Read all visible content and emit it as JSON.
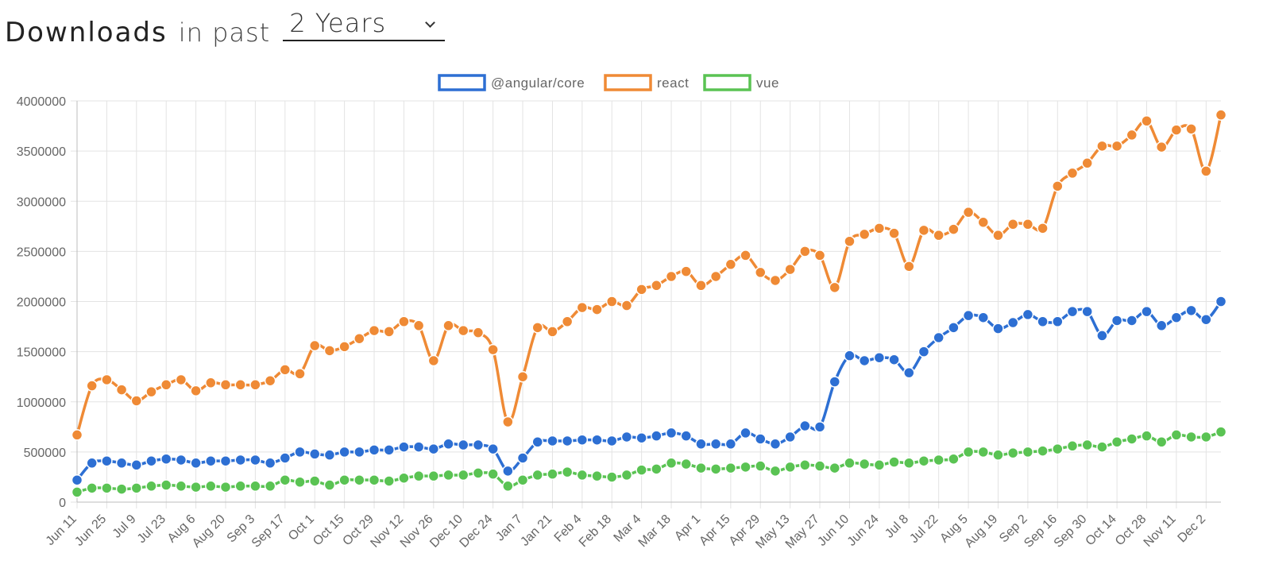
{
  "header": {
    "title": "Downloads",
    "subtitle": "in past",
    "period_select": {
      "value": "2 Years"
    }
  },
  "chart_data": {
    "type": "line",
    "ylim": [
      0,
      4000000
    ],
    "y_ticks": [
      "4000000",
      "3500000",
      "3000000",
      "2500000",
      "2000000",
      "1500000",
      "1000000",
      "500000",
      "0"
    ],
    "x_tick_labels": [
      "Jun 11",
      "Jun 25",
      "Jul 9",
      "Jul 23",
      "Aug 6",
      "Aug 20",
      "Sep 3",
      "Sep 17",
      "Oct 1",
      "Oct 15",
      "Oct 29",
      "Nov 12",
      "Nov 26",
      "Dec 10",
      "Dec 24",
      "Jan 7",
      "Jan 21",
      "Feb 4",
      "Feb 18",
      "Mar 4",
      "Mar 18",
      "Apr 1",
      "Apr 15",
      "Apr 29",
      "May 13",
      "May 27",
      "Jun 10",
      "Jun 24",
      "Jul 8",
      "Jul 22",
      "Aug 5",
      "Aug 19",
      "Sep 2",
      "Sep 16",
      "Sep 30",
      "Oct 14",
      "Oct 28",
      "Nov 11",
      "Dec 2"
    ],
    "grid": true,
    "legend_position": "top-center",
    "series": [
      {
        "name": "@angular/core",
        "color": "#2d6fd3",
        "values": [
          220000,
          390000,
          410000,
          390000,
          370000,
          410000,
          430000,
          420000,
          390000,
          410000,
          410000,
          420000,
          420000,
          390000,
          440000,
          500000,
          480000,
          470000,
          500000,
          500000,
          520000,
          520000,
          550000,
          550000,
          530000,
          580000,
          570000,
          570000,
          530000,
          310000,
          440000,
          600000,
          610000,
          610000,
          620000,
          620000,
          610000,
          650000,
          640000,
          660000,
          690000,
          660000,
          580000,
          580000,
          580000,
          690000,
          630000,
          580000,
          650000,
          760000,
          750000,
          1200000,
          1460000,
          1410000,
          1440000,
          1420000,
          1290000,
          1500000,
          1640000,
          1740000,
          1860000,
          1840000,
          1730000,
          1790000,
          1870000,
          1800000,
          1800000,
          1900000,
          1900000,
          1660000,
          1810000,
          1810000,
          1900000,
          1760000,
          1840000,
          1910000,
          1820000,
          2000000
        ]
      },
      {
        "name": "react",
        "color": "#ef8a35",
        "values": [
          670000,
          1160000,
          1220000,
          1120000,
          1010000,
          1100000,
          1170000,
          1220000,
          1110000,
          1190000,
          1170000,
          1170000,
          1170000,
          1210000,
          1320000,
          1280000,
          1560000,
          1510000,
          1550000,
          1630000,
          1710000,
          1700000,
          1800000,
          1760000,
          1410000,
          1760000,
          1710000,
          1690000,
          1520000,
          800000,
          1250000,
          1740000,
          1700000,
          1800000,
          1940000,
          1920000,
          2000000,
          1960000,
          2120000,
          2160000,
          2250000,
          2300000,
          2160000,
          2250000,
          2370000,
          2460000,
          2290000,
          2210000,
          2320000,
          2500000,
          2460000,
          2140000,
          2600000,
          2670000,
          2730000,
          2680000,
          2350000,
          2710000,
          2660000,
          2720000,
          2890000,
          2790000,
          2660000,
          2770000,
          2770000,
          2730000,
          3150000,
          3280000,
          3380000,
          3550000,
          3550000,
          3660000,
          3800000,
          3540000,
          3710000,
          3720000,
          3300000,
          3860000
        ]
      },
      {
        "name": "vue",
        "color": "#5ac353",
        "values": [
          100000,
          140000,
          140000,
          130000,
          140000,
          160000,
          170000,
          160000,
          150000,
          160000,
          150000,
          160000,
          160000,
          160000,
          220000,
          200000,
          210000,
          170000,
          220000,
          220000,
          220000,
          210000,
          240000,
          260000,
          260000,
          270000,
          270000,
          290000,
          280000,
          160000,
          220000,
          270000,
          280000,
          300000,
          270000,
          260000,
          250000,
          270000,
          320000,
          330000,
          390000,
          380000,
          340000,
          330000,
          340000,
          350000,
          360000,
          310000,
          350000,
          370000,
          360000,
          340000,
          390000,
          380000,
          370000,
          400000,
          390000,
          410000,
          420000,
          430000,
          500000,
          500000,
          470000,
          490000,
          500000,
          510000,
          530000,
          560000,
          570000,
          550000,
          600000,
          630000,
          660000,
          600000,
          670000,
          650000,
          650000,
          700000
        ]
      }
    ]
  }
}
